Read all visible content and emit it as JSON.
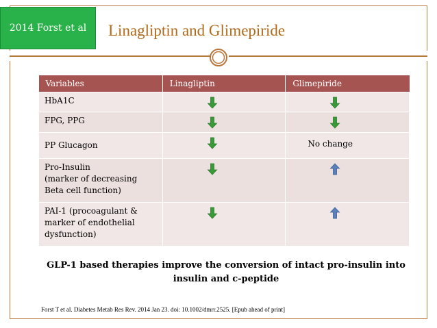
{
  "badge": {
    "text": "2014 Forst et al"
  },
  "title": "Linagliptin and Glimepiride",
  "table": {
    "headers": [
      "Variables",
      "Linagliptin",
      "Glimepiride"
    ],
    "rows": [
      {
        "variable": "HbA1C",
        "linagliptin": {
          "icon": "green-down-arrow-icon",
          "text": ""
        },
        "glimepiride": {
          "icon": "green-down-arrow-icon",
          "text": ""
        }
      },
      {
        "variable": "FPG, PPG",
        "linagliptin": {
          "icon": "green-down-arrow-icon",
          "text": ""
        },
        "glimepiride": {
          "icon": "green-down-arrow-icon",
          "text": ""
        }
      },
      {
        "variable": "PP Glucagon",
        "linagliptin": {
          "icon": "green-down-arrow-icon",
          "text": ""
        },
        "glimepiride": {
          "icon": "",
          "text": "No change"
        }
      },
      {
        "variable": "Pro-Insulin\n(marker of decreasing\nBeta cell function)",
        "linagliptin": {
          "icon": "green-down-arrow-icon",
          "text": ""
        },
        "glimepiride": {
          "icon": "blue-up-arrow-icon",
          "text": ""
        }
      },
      {
        "variable": "PAI-1 (procoagulant &\nmarker of endothelial\ndysfunction)",
        "linagliptin": {
          "icon": "green-down-arrow-icon",
          "text": ""
        },
        "glimepiride": {
          "icon": "blue-up-arrow-icon",
          "text": ""
        }
      }
    ]
  },
  "statement": "GLP-1 based therapies improve the conversion of intact pro-insulin into insulin and c-peptide",
  "citation": "Forst T et al. Diabetes Metab Res Rev. 2014 Jan 23. doi: 10.1002/dmrr.2525. [Epub ahead of print]",
  "colors": {
    "badge": "#29b24a",
    "title": "#b06b1a",
    "header": "#a65452",
    "row": "#f0e7e6",
    "down_arrow": "#3a9a3a",
    "up_arrow": "#5b7fb8",
    "frame": "#b8763a"
  }
}
